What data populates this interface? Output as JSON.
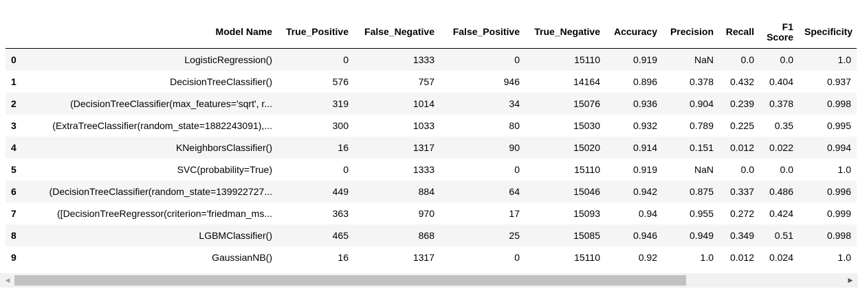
{
  "table": {
    "columns": [
      "",
      "Model Name",
      "True_Positive",
      "False_Negative",
      "False_Positive",
      "True_Negative",
      "Accuracy",
      "Precision",
      "Recall",
      "F1 Score",
      "Specificity"
    ],
    "rows": [
      [
        "0",
        "LogisticRegression()",
        "0",
        "1333",
        "0",
        "15110",
        "0.919",
        "NaN",
        "0.0",
        "0.0",
        "1.0"
      ],
      [
        "1",
        "DecisionTreeClassifier()",
        "576",
        "757",
        "946",
        "14164",
        "0.896",
        "0.378",
        "0.432",
        "0.404",
        "0.937"
      ],
      [
        "2",
        "(DecisionTreeClassifier(max_features='sqrt', r...",
        "319",
        "1014",
        "34",
        "15076",
        "0.936",
        "0.904",
        "0.239",
        "0.378",
        "0.998"
      ],
      [
        "3",
        "(ExtraTreeClassifier(random_state=1882243091),...",
        "300",
        "1033",
        "80",
        "15030",
        "0.932",
        "0.789",
        "0.225",
        "0.35",
        "0.995"
      ],
      [
        "4",
        "KNeighborsClassifier()",
        "16",
        "1317",
        "90",
        "15020",
        "0.914",
        "0.151",
        "0.012",
        "0.022",
        "0.994"
      ],
      [
        "5",
        "SVC(probability=True)",
        "0",
        "1333",
        "0",
        "15110",
        "0.919",
        "NaN",
        "0.0",
        "0.0",
        "1.0"
      ],
      [
        "6",
        "(DecisionTreeClassifier(random_state=139922727...",
        "449",
        "884",
        "64",
        "15046",
        "0.942",
        "0.875",
        "0.337",
        "0.486",
        "0.996"
      ],
      [
        "7",
        "([DecisionTreeRegressor(criterion='friedman_ms...",
        "363",
        "970",
        "17",
        "15093",
        "0.94",
        "0.955",
        "0.272",
        "0.424",
        "0.999"
      ],
      [
        "8",
        "LGBMClassifier()",
        "465",
        "868",
        "25",
        "15085",
        "0.946",
        "0.949",
        "0.349",
        "0.51",
        "0.998"
      ],
      [
        "9",
        "GaussianNB()",
        "16",
        "1317",
        "0",
        "15110",
        "0.92",
        "1.0",
        "0.012",
        "0.024",
        "1.0"
      ]
    ]
  },
  "scrollbar": {
    "left_arrow": "◀",
    "right_arrow": "▶",
    "position_fraction": 0.0,
    "visible_fraction": 0.81
  }
}
